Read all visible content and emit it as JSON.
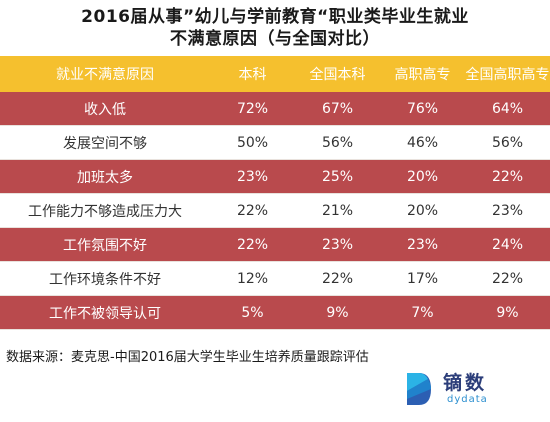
{
  "title_line1": "2016届从事”幼儿与学前教育“职业类毕业生就业",
  "title_line2": "不满意原因（与全国对比）",
  "table": {
    "headers": [
      "就业不满意原因",
      "本科",
      "全国本科",
      "高职高专",
      "全国高职高专"
    ],
    "rows": [
      {
        "reason": "收入低",
        "v1": "72%",
        "v2": "67%",
        "v3": "76%",
        "v4": "64%"
      },
      {
        "reason": "发展空间不够",
        "v1": "50%",
        "v2": "56%",
        "v3": "46%",
        "v4": "56%"
      },
      {
        "reason": "加班太多",
        "v1": "23%",
        "v2": "25%",
        "v3": "20%",
        "v4": "22%"
      },
      {
        "reason": "工作能力不够造成压力大",
        "v1": "22%",
        "v2": "21%",
        "v3": "20%",
        "v4": "23%"
      },
      {
        "reason": "工作氛围不好",
        "v1": "22%",
        "v2": "23%",
        "v3": "23%",
        "v4": "24%"
      },
      {
        "reason": "工作环境条件不好",
        "v1": "12%",
        "v2": "22%",
        "v3": "17%",
        "v4": "22%"
      },
      {
        "reason": "工作不被领导认可",
        "v1": "5%",
        "v2": "9%",
        "v3": "7%",
        "v4": "9%"
      }
    ]
  },
  "source": "数据来源：麦克思-中国2016届大学生毕业生培养质量跟踪评估",
  "logo": {
    "cn": "镝数",
    "en": "dydata",
    "icon": "dydata-logo-icon"
  },
  "colors": {
    "header": "#f5c02e",
    "row_red": "#b94a4d",
    "row_white": "#ffffff"
  }
}
